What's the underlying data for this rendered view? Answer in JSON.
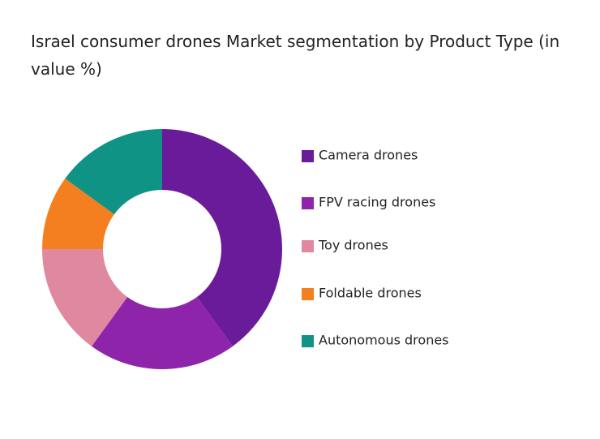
{
  "chart_data": {
    "type": "donut",
    "title": "Israel consumer drones Market segmentation by Product Type (in value %)",
    "categories": [
      "Camera drones",
      "FPV racing drones",
      "Toy drones",
      "Foldable drones",
      "Autonomous drones"
    ],
    "values": [
      40,
      20,
      15,
      10,
      15
    ],
    "colors": [
      "#6a1b9a",
      "#8e24aa",
      "#e088a0",
      "#f37f20",
      "#0e9384"
    ],
    "legend": "right"
  }
}
